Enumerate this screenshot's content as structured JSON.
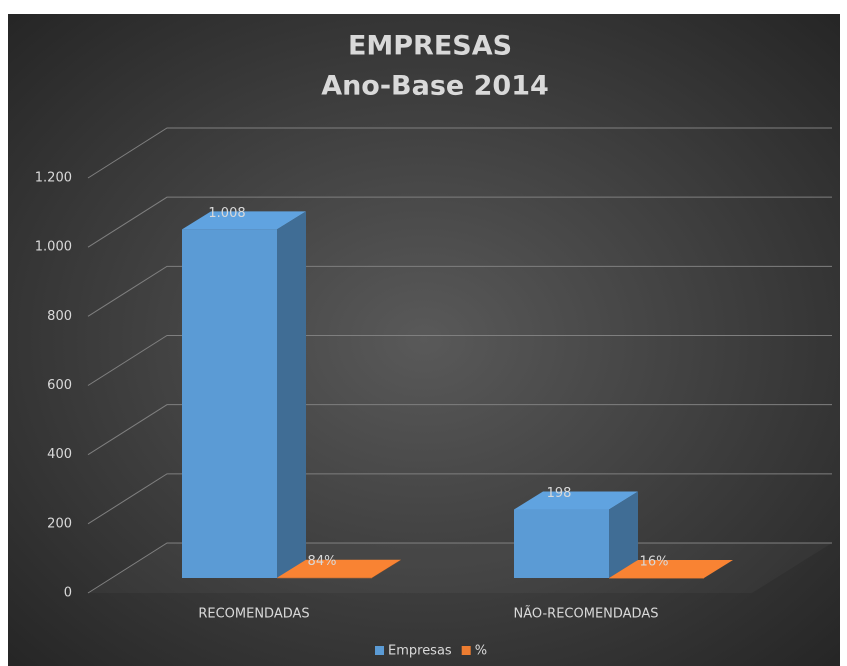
{
  "chart_data": {
    "type": "bar3d",
    "title": [
      "EMPRESAS",
      "Ano-Base 2014"
    ],
    "categories": [
      "RECOMENDADAS",
      "NÃO-RECOMENDADAS"
    ],
    "series": [
      {
        "name": "Empresas",
        "color": "#5b9bd5",
        "values": [
          1008,
          198
        ],
        "value_labels": [
          "1.008",
          "198"
        ]
      },
      {
        "name": "%",
        "color": "#ed7d31",
        "values": [
          0.84,
          0.16
        ],
        "value_labels": [
          "84%",
          "16%"
        ]
      }
    ],
    "ylim": [
      0,
      1200
    ],
    "yticks": [
      0,
      200,
      400,
      600,
      800,
      {
        "value": 1000,
        "label": "1.000"
      },
      {
        "value": 1200,
        "label": "1.200"
      }
    ],
    "grid": true,
    "legend": "bottom"
  }
}
